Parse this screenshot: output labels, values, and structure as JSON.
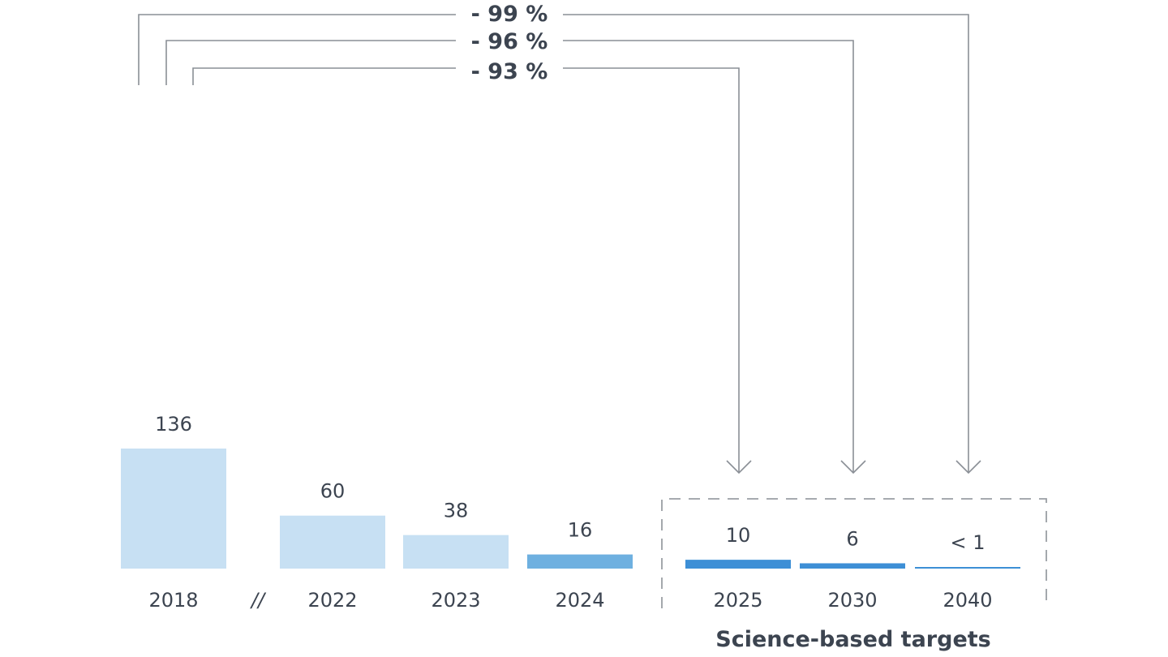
{
  "chart_data": {
    "type": "bar",
    "categories": [
      "2018",
      "2022",
      "2023",
      "2024",
      "2025",
      "2030",
      "2040"
    ],
    "values": [
      136,
      60,
      38,
      16,
      10,
      6,
      1
    ],
    "value_labels": [
      "136",
      "60",
      "38",
      "16",
      "10",
      "6",
      "< 1"
    ],
    "break_marker": "//",
    "target_group_label": "Science-based targets",
    "target_categories": [
      "2025",
      "2030",
      "2040"
    ],
    "reductions": [
      {
        "label": "- 99 %",
        "from": "2018",
        "to": "2040"
      },
      {
        "label": "- 96 %",
        "from": "2018",
        "to": "2030"
      },
      {
        "label": "- 93 %",
        "from": "2018",
        "to": "2025"
      }
    ],
    "colors": {
      "historic": "#c7e0f3",
      "current": "#6eb0e0",
      "target": "#3d8fd6",
      "text": "#3c4450",
      "connector": "#8a8f96"
    },
    "grid": false,
    "legend": "none"
  }
}
